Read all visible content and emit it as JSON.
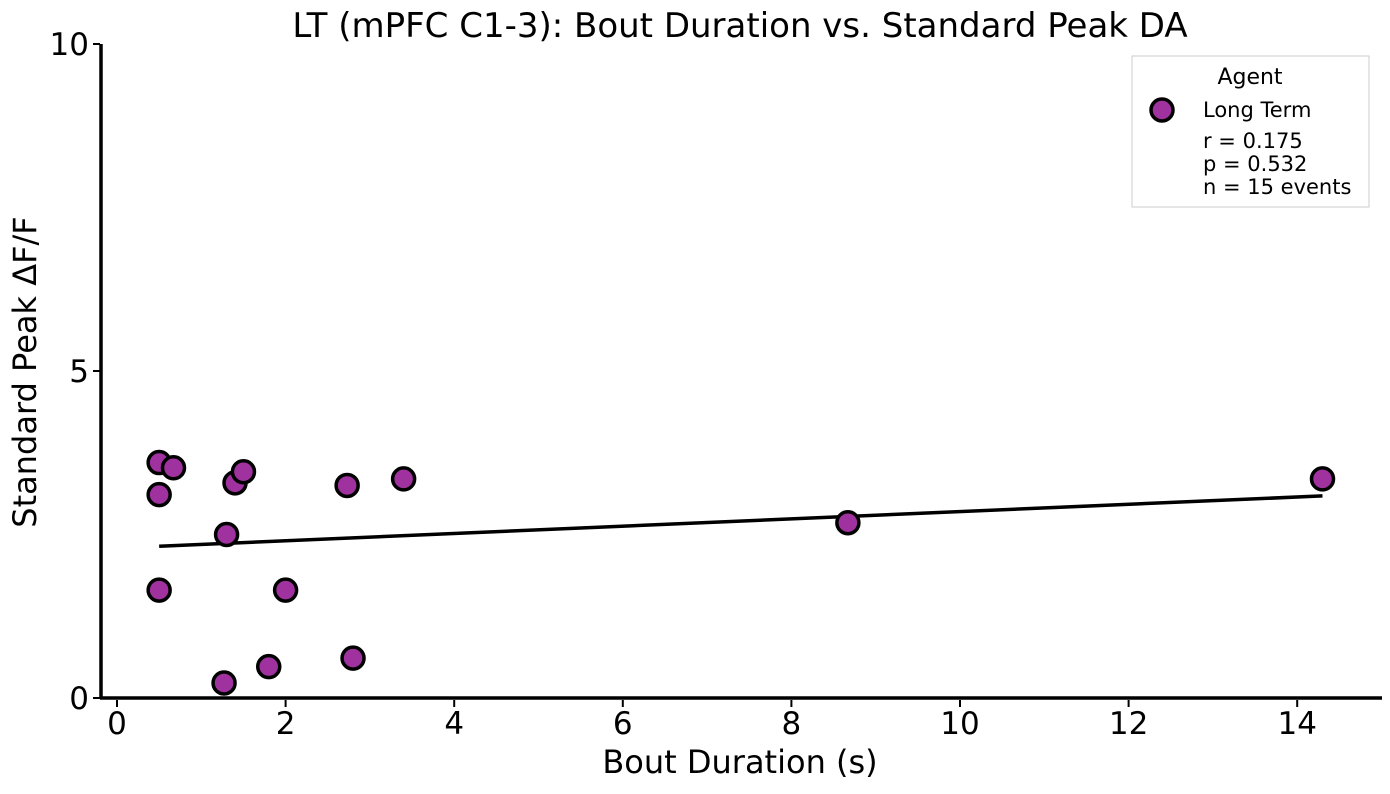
{
  "chart_data": {
    "type": "scatter",
    "title": "LT (mPFC C1-3): Bout Duration vs. Standard Peak DA",
    "xlabel": "Bout Duration (s)",
    "ylabel": "Standard Peak ΔF/F",
    "xlim": [
      -0.2,
      15.0
    ],
    "ylim": [
      0,
      10
    ],
    "x_ticks": [
      0,
      2,
      4,
      6,
      8,
      10,
      12,
      14
    ],
    "y_ticks": [
      0,
      5,
      10
    ],
    "grid": false,
    "legend_position": "top-right",
    "series": [
      {
        "name": "Long Term",
        "color": "#a0329f",
        "edge_color": "#000000",
        "points": [
          {
            "x": 0.5,
            "y": 3.6
          },
          {
            "x": 0.67,
            "y": 3.52
          },
          {
            "x": 0.5,
            "y": 3.11
          },
          {
            "x": 0.5,
            "y": 1.65
          },
          {
            "x": 1.27,
            "y": 0.23
          },
          {
            "x": 1.3,
            "y": 2.5
          },
          {
            "x": 1.4,
            "y": 3.29
          },
          {
            "x": 1.5,
            "y": 3.46
          },
          {
            "x": 1.8,
            "y": 0.48
          },
          {
            "x": 2.0,
            "y": 1.65
          },
          {
            "x": 2.73,
            "y": 3.25
          },
          {
            "x": 2.8,
            "y": 0.61
          },
          {
            "x": 3.4,
            "y": 3.35
          },
          {
            "x": 8.67,
            "y": 2.68
          },
          {
            "x": 14.3,
            "y": 3.35
          }
        ]
      }
    ],
    "fit_line": {
      "color": "#000000",
      "x": [
        0.5,
        14.3
      ],
      "y": [
        2.32,
        3.09
      ]
    },
    "legend": {
      "title": "Agent",
      "entries": [
        "Long Term"
      ],
      "stats": [
        "r = 0.175",
        "p = 0.532",
        "n = 15 events"
      ]
    }
  }
}
